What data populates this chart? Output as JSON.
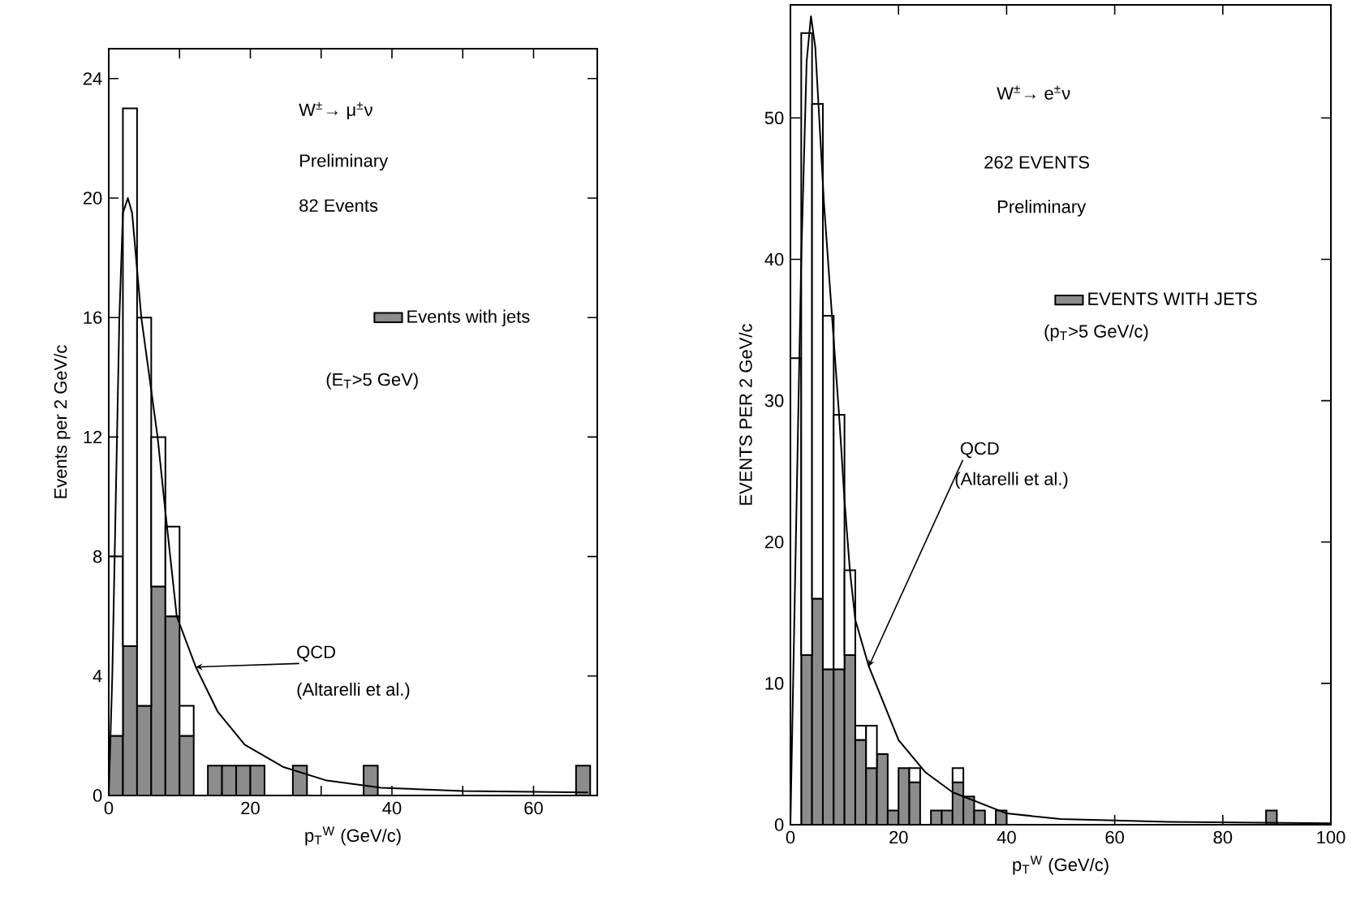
{
  "chart_data": [
    {
      "type": "bar",
      "stacked": true,
      "xlabel": "p$_{T}$$^{W}$ (GeV/c)",
      "ylabel": "Events per 2 GeV/c",
      "x": [
        1,
        3,
        5,
        7,
        9,
        11,
        13,
        15,
        17,
        19,
        21,
        23,
        25,
        27,
        29,
        31,
        33,
        35,
        37,
        39,
        41,
        43,
        45,
        47,
        49,
        51,
        53,
        55,
        57,
        59,
        61,
        63,
        65,
        67
      ],
      "xlim": [
        0,
        69
      ],
      "xticks": [
        0,
        {
          "value": 10,
          "label": null
        },
        20,
        {
          "value": 30,
          "label": null
        },
        40,
        {
          "value": 50,
          "label": null
        },
        60
      ],
      "ylim": [
        0,
        25
      ],
      "yticks": [
        0,
        4,
        8,
        12,
        16,
        20,
        24
      ],
      "legend": "right",
      "series": [
        {
          "name": "Events with jets",
          "color": "#8c8c8c",
          "values": [
            2,
            5,
            3,
            7,
            6,
            2,
            0,
            1,
            1,
            1,
            1,
            0,
            0,
            1,
            0,
            0,
            0,
            0,
            1,
            0,
            0,
            0,
            0,
            0,
            0,
            0,
            0,
            0,
            0,
            0,
            0,
            0,
            0,
            1
          ]
        },
        {
          "color": "#ffffff",
          "values": [
            6,
            18,
            13,
            5,
            3,
            1,
            0,
            0,
            0,
            0,
            0,
            0,
            0,
            0,
            0,
            0,
            0,
            0,
            0,
            0,
            0,
            0,
            0,
            0,
            0,
            0,
            0,
            0,
            0,
            0,
            0,
            0,
            0,
            0
          ]
        },
        {
          "type": "line",
          "color": "#000000",
          "x": [
            0,
            0.5,
            1,
            1.5,
            2,
            2.7,
            3.3,
            4.6,
            6.9,
            8,
            9.6,
            12.3,
            15.4,
            19.2,
            24.6,
            30.8,
            38.5,
            50,
            67.7
          ],
          "values": [
            0,
            4,
            10,
            16,
            19.5,
            20,
            19.5,
            16,
            12,
            9.5,
            6,
            4.3,
            2.8,
            1.7,
            0.96,
            0.5,
            0.26,
            0.15,
            0.1
          ]
        }
      ],
      "annotations": [
        "W$^{±}$→ μ$^{±}$ν",
        "Preliminary",
        "82 Events",
        "(E$_{T}$>5 GeV)",
        {
          "text": "QCD",
          "x": 12.3,
          "y": 4.3
        },
        "(Altarelli et al.)"
      ]
    },
    {
      "type": "bar",
      "stacked": true,
      "xlabel": "p$_{T}$$^{W}$ (GeV/c)",
      "ylabel": "EVENTS PER 2 GeV/c",
      "x": [
        1,
        3,
        5,
        7,
        9,
        11,
        13,
        15,
        17,
        19,
        21,
        23,
        25,
        27,
        29,
        31,
        33,
        35,
        37,
        39,
        41,
        43,
        45,
        47,
        49,
        51,
        53,
        55,
        57,
        59,
        61,
        63,
        65,
        67,
        69,
        71,
        73,
        75,
        77,
        79,
        81,
        83,
        85,
        87,
        89,
        91,
        93,
        95,
        97,
        99
      ],
      "xlim": [
        0,
        100
      ],
      "xticks": [
        0,
        20,
        40,
        60,
        80,
        100
      ],
      "ylim": [
        0,
        58
      ],
      "yticks": [
        0,
        10,
        20,
        30,
        40,
        50
      ],
      "legend": "right",
      "series": [
        {
          "name": "EVENTS WITH JETS",
          "color": "#8c8c8c",
          "values": [
            0,
            12,
            16,
            11,
            11,
            12,
            6,
            4,
            5,
            1,
            4,
            3,
            0,
            1,
            1,
            3,
            2,
            1,
            0,
            1,
            0,
            0,
            0,
            0,
            0,
            0,
            0,
            0,
            0,
            0,
            0,
            0,
            0,
            0,
            0,
            0,
            0,
            0,
            0,
            0,
            0,
            0,
            0,
            0,
            1,
            0,
            0,
            0,
            0,
            0
          ]
        },
        {
          "color": "#ffffff",
          "values": [
            33,
            44,
            35,
            25,
            18,
            6,
            1,
            3,
            0,
            0,
            0,
            1,
            0,
            0,
            0,
            1,
            0,
            0,
            0,
            0,
            0,
            0,
            0,
            0,
            0,
            0,
            0,
            0,
            0,
            0,
            0,
            0,
            0,
            0,
            0,
            0,
            0,
            0,
            0,
            0,
            0,
            0,
            0,
            0,
            0,
            0,
            0,
            0,
            0,
            0
          ]
        },
        {
          "type": "line",
          "color": "#000000",
          "x": [
            0,
            1,
            2,
            3,
            3.8,
            4.6,
            6.2,
            7.5,
            9,
            10,
            11,
            12,
            14.5,
            20,
            25,
            30,
            40,
            50,
            70,
            100
          ],
          "values": [
            0,
            20,
            40,
            54,
            57.2,
            55,
            44,
            37,
            29,
            23,
            18,
            14.5,
            11.2,
            6,
            3.7,
            2.3,
            0.8,
            0.4,
            0.2,
            0.1
          ]
        }
      ],
      "annotations": [
        "W$^{±}$→ e$^{±}$ν",
        "262 EVENTS",
        "Preliminary",
        "(p$_{T}$>5 GeV/c)",
        {
          "text": "QCD",
          "x": 14.5,
          "y": 11.2
        },
        "(Altarelli et al.)"
      ]
    }
  ]
}
